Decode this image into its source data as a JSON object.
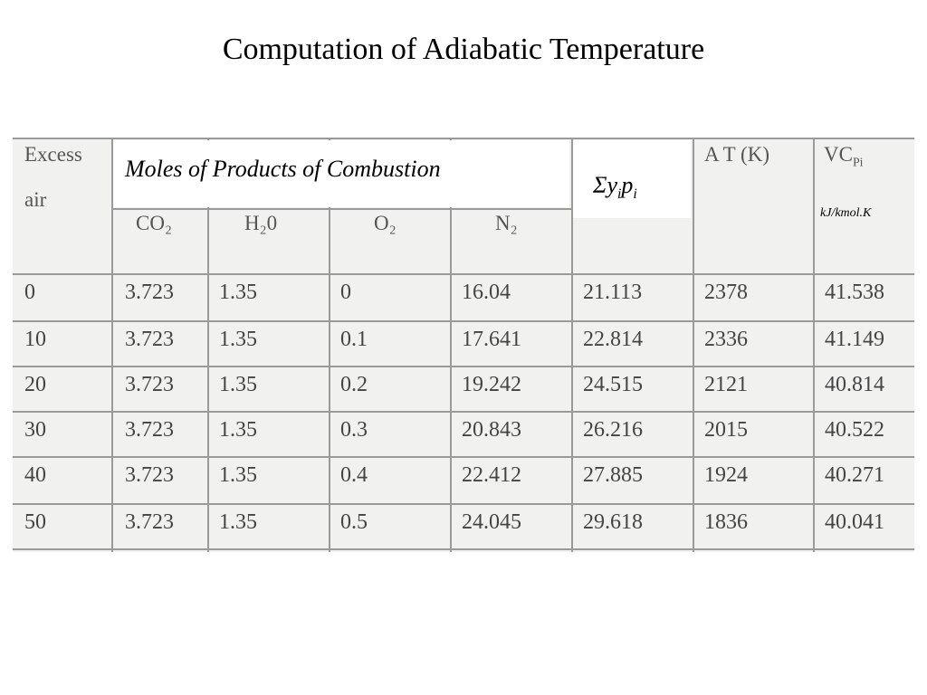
{
  "title": "Computation of Adiabatic Temperature",
  "table": {
    "header": {
      "excess_air": [
        "Excess",
        "air"
      ],
      "moles": "Moles of Products of Combustion",
      "species": [
        "CO₂",
        "H₂0",
        "O₂",
        "N₂"
      ],
      "sum": [
        "Σy",
        "i",
        "p",
        "i"
      ],
      "temperature": "A  T (K)",
      "vcp": [
        "VC",
        "Pi"
      ],
      "vcp_unit": "kJ/kmol.K"
    },
    "rows": [
      [
        "0",
        "3.723",
        "1.35",
        "0",
        "16.04",
        "21.113",
        "2378",
        "41.538"
      ],
      [
        "10",
        "3.723",
        "1.35",
        "0.1",
        "17.641",
        "22.814",
        "2336",
        "41.149"
      ],
      [
        "20",
        "3.723",
        "1.35",
        "0.2",
        "19.242",
        "24.515",
        "2121",
        "40.814"
      ],
      [
        "30",
        "3.723",
        "1.35",
        "0.3",
        "20.843",
        "26.216",
        "2015",
        "40.522"
      ],
      [
        "40",
        "3.723",
        "1.35",
        "0.4",
        "22.412",
        "27.885",
        "1924",
        "40.271"
      ],
      [
        "50",
        "3.723",
        "1.35",
        "0.5",
        "24.045",
        "29.618",
        "1836",
        "40.041"
      ]
    ]
  }
}
